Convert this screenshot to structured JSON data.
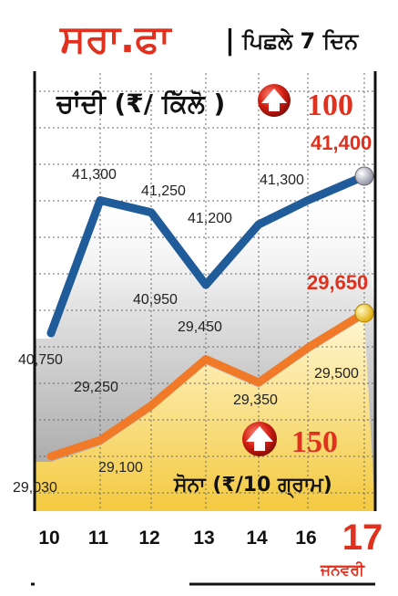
{
  "header": {
    "title": "ਸਰਾ.ਫਾ",
    "separator": "|",
    "subtitle": "ਪਿਛਲੇ 7 ਦਿਨ"
  },
  "chart_data": [
    {
      "type": "line",
      "title": "ਚਾਂਦੀ (₹/ ਕਿੱਲੋ )",
      "change_label": "100",
      "change_direction": "up",
      "categories": [
        "10",
        "11",
        "12",
        "13",
        "14",
        "16",
        "17"
      ],
      "values": [
        40750,
        41300,
        41250,
        40950,
        41200,
        41300,
        41400
      ],
      "value_labels": [
        "40,750",
        "41,300",
        "41,250",
        "40,950",
        "41,200",
        "41,300",
        "41,400"
      ],
      "color": "#1f5c99",
      "endpoint_color": "#c9c9d6"
    },
    {
      "type": "line",
      "title": "ਸੋਨਾ (₹/10 ਗ੍ਰਾਮ)",
      "change_label": "150",
      "change_direction": "up",
      "categories": [
        "10",
        "11",
        "12",
        "13",
        "14",
        "16",
        "17"
      ],
      "values": [
        29030,
        29100,
        29250,
        29450,
        29350,
        29500,
        29650
      ],
      "value_labels": [
        "29,030",
        "29,100",
        "29,250",
        "29,450",
        "29,350",
        "29,500",
        "29,650"
      ],
      "color": "#f07a28",
      "endpoint_color": "#f3c630"
    }
  ],
  "x_axis": {
    "labels": [
      "10",
      "11",
      "12",
      "13",
      "14",
      "16",
      "17"
    ],
    "month_label": "ਜਨਵਰੀ",
    "highlight_color": "#e0301e"
  },
  "colors": {
    "title_red": "#e0301e",
    "grid": "#666666",
    "axis": "#111111"
  },
  "grid": true
}
